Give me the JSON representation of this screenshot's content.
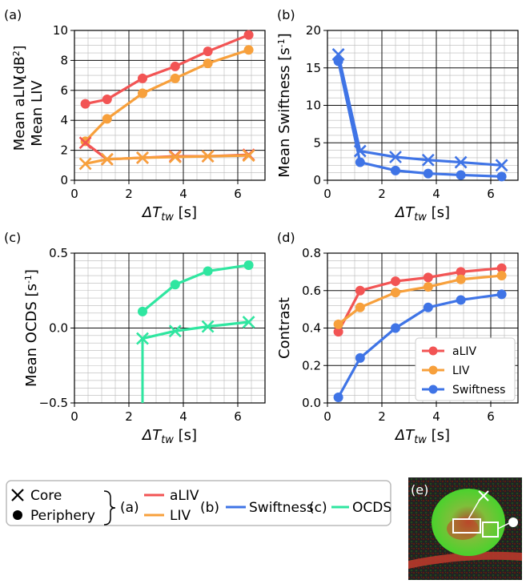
{
  "colors": {
    "aLIV": "#f25454",
    "LIV": "#f7a03c",
    "Swiftness": "#3f74e6",
    "OCDS": "#2fe6a0"
  },
  "chart_data": [
    {
      "type": "line",
      "panel": "(a)",
      "xlabel": "ΔT",
      "xsub": "tw",
      "xunit": "[s]",
      "ylabel_1": "Mean aLIV",
      "ylabel_2": "Mean LIV",
      "yunit": "[dB",
      "yunit_sup": "2",
      "yunit_end": "]",
      "xlim": [
        0,
        7
      ],
      "ylim": [
        0,
        10
      ],
      "xticks": [
        "0",
        "2",
        "4",
        "6"
      ],
      "yticks": [
        "0",
        "2",
        "4",
        "6",
        "8",
        "10"
      ],
      "x": [
        0.4,
        1.2,
        2.5,
        3.7,
        4.9,
        6.4
      ],
      "series": [
        {
          "name": "aLIV periphery",
          "color_key": "aLIV",
          "marker": "circle",
          "values": [
            5.1,
            5.4,
            6.8,
            7.6,
            8.6,
            9.7
          ]
        },
        {
          "name": "LIV periphery",
          "color_key": "LIV",
          "marker": "circle",
          "values": [
            2.6,
            4.1,
            5.8,
            6.8,
            7.8,
            8.7
          ]
        },
        {
          "name": "aLIV core",
          "color_key": "aLIV",
          "marker": "x",
          "values": [
            2.5,
            1.4,
            1.5,
            1.6,
            1.6,
            1.7
          ]
        },
        {
          "name": "LIV core",
          "color_key": "LIV",
          "marker": "x",
          "values": [
            1.1,
            1.4,
            1.5,
            1.55,
            1.6,
            1.65
          ]
        }
      ]
    },
    {
      "type": "line",
      "panel": "(b)",
      "xlabel": "ΔT",
      "xsub": "tw",
      "xunit": "[s]",
      "ylabel": "Mean Swiftness [s",
      "yunit_sup": "-1",
      "yunit_end": "]",
      "xlim": [
        0,
        7
      ],
      "ylim": [
        0,
        20
      ],
      "xticks": [
        "0",
        "2",
        "4",
        "6"
      ],
      "yticks": [
        "0",
        "5",
        "10",
        "15",
        "20"
      ],
      "x": [
        0.4,
        1.2,
        2.5,
        3.7,
        4.9,
        6.4
      ],
      "series": [
        {
          "name": "Swiftness core",
          "color_key": "Swiftness",
          "marker": "x",
          "values": [
            16.8,
            3.9,
            3.1,
            2.7,
            2.4,
            2.0
          ]
        },
        {
          "name": "Swiftness periphery",
          "color_key": "Swiftness",
          "marker": "circle",
          "values": [
            15.9,
            2.4,
            1.3,
            0.9,
            0.7,
            0.5
          ]
        }
      ]
    },
    {
      "type": "line",
      "panel": "(c)",
      "xlabel": "ΔT",
      "xsub": "tw",
      "xunit": "[s]",
      "ylabel": "Mean OCDS [s",
      "yunit_sup": "-1",
      "yunit_end": "]",
      "xlim": [
        0,
        7
      ],
      "ylim": [
        -0.5,
        0.5
      ],
      "xticks": [
        "0",
        "2",
        "4",
        "6"
      ],
      "yticks": [
        "−0.5",
        "0.0",
        "0.5"
      ],
      "x": [
        2.5,
        3.7,
        4.9,
        6.4
      ],
      "series": [
        {
          "name": "OCDS periphery",
          "color_key": "OCDS",
          "marker": "circle",
          "values": [
            0.11,
            0.29,
            0.38,
            0.42
          ]
        },
        {
          "name": "OCDS core",
          "color_key": "OCDS",
          "marker": "x",
          "values": [
            -0.07,
            -0.02,
            0.01,
            0.04
          ]
        }
      ],
      "drop_line": {
        "x": 2.5,
        "from": -0.07,
        "to": -0.5
      }
    },
    {
      "type": "line",
      "panel": "(d)",
      "xlabel": "ΔT",
      "xsub": "tw",
      "xunit": "[s]",
      "ylabel": "Contrast",
      "xlim": [
        0,
        7
      ],
      "ylim": [
        0,
        0.8
      ],
      "xticks": [
        "0",
        "2",
        "4",
        "6"
      ],
      "yticks": [
        "0.0",
        "0.2",
        "0.4",
        "0.6",
        "0.8"
      ],
      "x": [
        0.4,
        1.2,
        2.5,
        3.7,
        4.9,
        6.4
      ],
      "series": [
        {
          "name": "aLIV",
          "color_key": "aLIV",
          "marker": "circle",
          "values": [
            0.38,
            0.6,
            0.65,
            0.67,
            0.7,
            0.72
          ]
        },
        {
          "name": "LIV",
          "color_key": "LIV",
          "marker": "circle",
          "values": [
            0.42,
            0.51,
            0.59,
            0.62,
            0.66,
            0.68
          ]
        },
        {
          "name": "Swiftness",
          "color_key": "Swiftness",
          "marker": "circle",
          "values": [
            0.03,
            0.24,
            0.4,
            0.51,
            0.55,
            0.58
          ]
        }
      ],
      "legend": {
        "placement": "lower-right",
        "entries": [
          "aLIV",
          "LIV",
          "Swiftness"
        ]
      }
    }
  ],
  "legend_box": {
    "core_label": "Core",
    "periphery_label": "Periphery",
    "group_a": "(a)",
    "group_b": "(b)",
    "group_c": "(c)",
    "aLIV": "aLIV",
    "LIV": "LIV",
    "Swiftness": "Swiftness",
    "OCDS": "OCDS"
  },
  "image_panel": {
    "label": "(e)"
  }
}
